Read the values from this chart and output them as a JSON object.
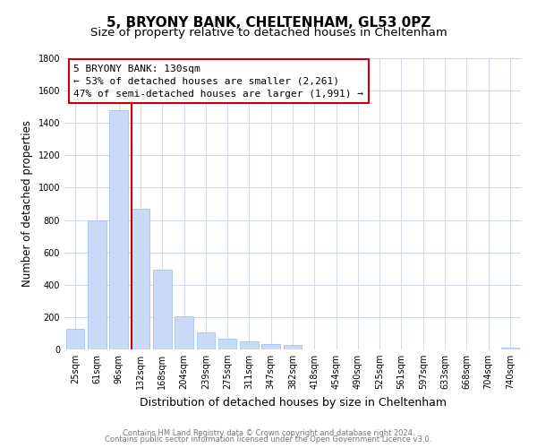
{
  "title": "5, BRYONY BANK, CHELTENHAM, GL53 0PZ",
  "subtitle": "Size of property relative to detached houses in Cheltenham",
  "xlabel": "Distribution of detached houses by size in Cheltenham",
  "ylabel": "Number of detached properties",
  "categories": [
    "25sqm",
    "61sqm",
    "96sqm",
    "132sqm",
    "168sqm",
    "204sqm",
    "239sqm",
    "275sqm",
    "311sqm",
    "347sqm",
    "382sqm",
    "418sqm",
    "454sqm",
    "490sqm",
    "525sqm",
    "561sqm",
    "597sqm",
    "633sqm",
    "668sqm",
    "704sqm",
    "740sqm"
  ],
  "values": [
    130,
    800,
    1480,
    870,
    495,
    205,
    105,
    65,
    50,
    35,
    25,
    0,
    0,
    0,
    0,
    0,
    0,
    0,
    0,
    0,
    10
  ],
  "bar_color": "#c9daf8",
  "bar_edge_color": "#a4c2f4",
  "vline_color": "#cc0000",
  "annotation_line1": "5 BRYONY BANK: 130sqm",
  "annotation_line2": "← 53% of detached houses are smaller (2,261)",
  "annotation_line3": "47% of semi-detached houses are larger (1,991) →",
  "annotation_box_color": "#ffffff",
  "annotation_box_edge_color": "#cc0000",
  "ylim": [
    0,
    1800
  ],
  "yticks": [
    0,
    200,
    400,
    600,
    800,
    1000,
    1200,
    1400,
    1600,
    1800
  ],
  "footer_line1": "Contains HM Land Registry data © Crown copyright and database right 2024.",
  "footer_line2": "Contains public sector information licensed under the Open Government Licence v3.0.",
  "background_color": "#ffffff",
  "grid_color": "#d0d8e8",
  "title_fontsize": 11,
  "subtitle_fontsize": 9.5,
  "tick_fontsize": 7,
  "ylabel_fontsize": 8.5,
  "xlabel_fontsize": 9,
  "annotation_fontsize": 8,
  "footer_fontsize": 6
}
